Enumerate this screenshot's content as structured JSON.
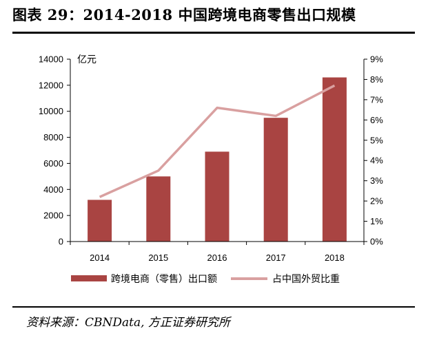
{
  "title": "图表 29：2014-2018 中国跨境电商零售出口规模",
  "source": "资料来源：CBNData, 方正证券研究所",
  "colors": {
    "bar": "#A94442",
    "line": "#D9A0A0",
    "axis": "#000000"
  },
  "chart_data": {
    "type": "bar",
    "title": "图表 29：2014-2018 中国跨境电商零售出口规模",
    "categories": [
      "2014",
      "2015",
      "2016",
      "2017",
      "2018"
    ],
    "ylabel": "亿元",
    "ylim": [
      0,
      14000
    ],
    "yticks": [
      "0",
      "2000",
      "4000",
      "6000",
      "8000",
      "10000",
      "12000",
      "14000"
    ],
    "y2lim": [
      0,
      9
    ],
    "y2ticks": [
      "0%",
      "1%",
      "2%",
      "3%",
      "4%",
      "5%",
      "6%",
      "7%",
      "8%",
      "9%"
    ],
    "series": [
      {
        "name": "跨境电商（零售）出口额",
        "type": "bar",
        "axis": "left",
        "values": [
          3200,
          5000,
          6900,
          9500,
          12600
        ]
      },
      {
        "name": "占中国外贸比重",
        "type": "line",
        "axis": "right",
        "values": [
          2.2,
          3.5,
          6.6,
          6.2,
          7.7
        ]
      }
    ],
    "legend": "bottom",
    "grid": false
  }
}
